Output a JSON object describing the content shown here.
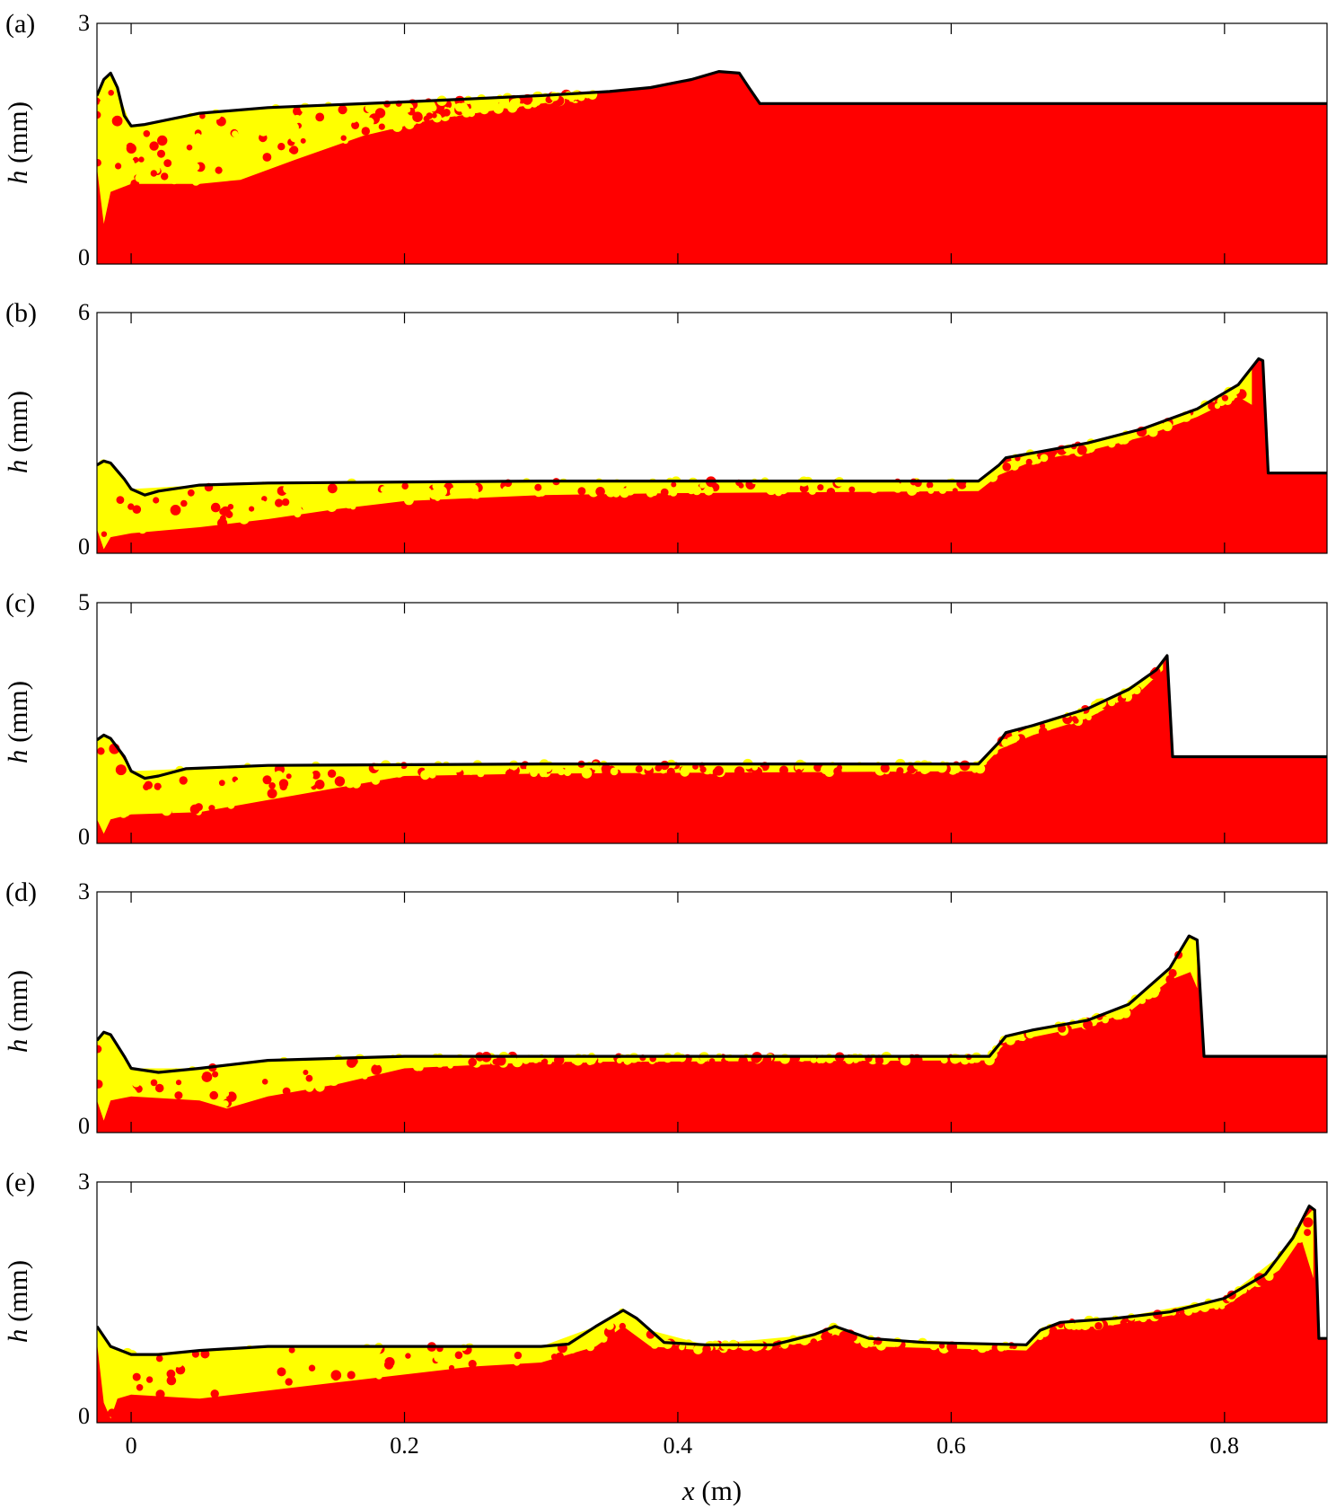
{
  "colors": {
    "fluid": "#ff0000",
    "particles": "#ffff00",
    "profile_line": "#000000",
    "background": "#ffffff"
  },
  "chart_data": {
    "type": "area",
    "shared_x": {
      "label_symbol": "x",
      "label_unit": "(m)",
      "xlim": [
        -0.025,
        0.875
      ],
      "ticks": [
        0,
        0.2,
        0.4,
        0.6,
        0.8
      ],
      "tick_labels": [
        "0",
        "0.2",
        "0.4",
        "0.6",
        "0.8"
      ]
    },
    "panels": [
      {
        "panel_label": "(a)",
        "ylabel_symbol": "h",
        "ylabel_unit": "(mm)",
        "ylim": [
          0,
          3
        ],
        "ytick_labels": [
          "0",
          "3"
        ],
        "profile": [
          [
            -0.025,
            2.1
          ],
          [
            -0.02,
            2.3
          ],
          [
            -0.015,
            2.38
          ],
          [
            -0.01,
            2.2
          ],
          [
            -0.005,
            1.85
          ],
          [
            0.0,
            1.72
          ],
          [
            0.01,
            1.74
          ],
          [
            0.05,
            1.88
          ],
          [
            0.1,
            1.95
          ],
          [
            0.2,
            2.02
          ],
          [
            0.3,
            2.1
          ],
          [
            0.35,
            2.15
          ],
          [
            0.38,
            2.2
          ],
          [
            0.41,
            2.3
          ],
          [
            0.43,
            2.4
          ],
          [
            0.445,
            2.38
          ],
          [
            0.452,
            2.2
          ],
          [
            0.46,
            2.0
          ],
          [
            0.875,
            2.0
          ]
        ],
        "particle_lower_edge": [
          [
            -0.025,
            1.2
          ],
          [
            -0.02,
            0.5
          ],
          [
            -0.015,
            0.9
          ],
          [
            0.0,
            1.0
          ],
          [
            0.05,
            1.0
          ],
          [
            0.08,
            1.05
          ],
          [
            0.12,
            1.3
          ],
          [
            0.17,
            1.6
          ],
          [
            0.22,
            1.8
          ],
          [
            0.28,
            1.95
          ],
          [
            0.34,
            2.1
          ]
        ]
      },
      {
        "panel_label": "(b)",
        "ylabel_symbol": "h",
        "ylabel_unit": "(mm)",
        "ylim": [
          0,
          6
        ],
        "ytick_labels": [
          "0",
          "6"
        ],
        "profile": [
          [
            -0.025,
            2.2
          ],
          [
            -0.02,
            2.3
          ],
          [
            -0.015,
            2.25
          ],
          [
            -0.005,
            1.85
          ],
          [
            0.0,
            1.6
          ],
          [
            0.01,
            1.45
          ],
          [
            0.02,
            1.55
          ],
          [
            0.05,
            1.7
          ],
          [
            0.1,
            1.75
          ],
          [
            0.3,
            1.8
          ],
          [
            0.62,
            1.8
          ],
          [
            0.635,
            2.2
          ],
          [
            0.64,
            2.38
          ],
          [
            0.66,
            2.5
          ],
          [
            0.7,
            2.75
          ],
          [
            0.74,
            3.1
          ],
          [
            0.78,
            3.6
          ],
          [
            0.81,
            4.2
          ],
          [
            0.825,
            4.85
          ],
          [
            0.828,
            4.8
          ],
          [
            0.832,
            2.0
          ],
          [
            0.875,
            2.0
          ]
        ],
        "particle_lower_edge": [
          [
            -0.025,
            0.6
          ],
          [
            -0.02,
            0.1
          ],
          [
            -0.015,
            0.4
          ],
          [
            0.0,
            0.5
          ],
          [
            0.05,
            0.65
          ],
          [
            0.1,
            0.85
          ],
          [
            0.15,
            1.1
          ],
          [
            0.2,
            1.3
          ],
          [
            0.3,
            1.45
          ],
          [
            0.4,
            1.5
          ],
          [
            0.62,
            1.55
          ],
          [
            0.635,
            1.95
          ],
          [
            0.66,
            2.3
          ],
          [
            0.7,
            2.55
          ],
          [
            0.74,
            2.9
          ],
          [
            0.78,
            3.4
          ],
          [
            0.81,
            3.9
          ],
          [
            0.82,
            3.7
          ]
        ]
      },
      {
        "panel_label": "(c)",
        "ylabel_symbol": "h",
        "ylabel_unit": "(mm)",
        "ylim": [
          0,
          5
        ],
        "ytick_labels": [
          "0",
          "5"
        ],
        "profile": [
          [
            -0.025,
            2.15
          ],
          [
            -0.02,
            2.25
          ],
          [
            -0.015,
            2.18
          ],
          [
            -0.005,
            1.8
          ],
          [
            0.0,
            1.5
          ],
          [
            0.01,
            1.35
          ],
          [
            0.02,
            1.4
          ],
          [
            0.04,
            1.55
          ],
          [
            0.1,
            1.62
          ],
          [
            0.3,
            1.65
          ],
          [
            0.62,
            1.65
          ],
          [
            0.635,
            2.1
          ],
          [
            0.64,
            2.3
          ],
          [
            0.66,
            2.45
          ],
          [
            0.7,
            2.8
          ],
          [
            0.73,
            3.2
          ],
          [
            0.75,
            3.6
          ],
          [
            0.758,
            3.9
          ],
          [
            0.762,
            1.8
          ],
          [
            0.875,
            1.8
          ]
        ],
        "particle_lower_edge": [
          [
            -0.025,
            0.5
          ],
          [
            -0.02,
            0.2
          ],
          [
            -0.015,
            0.5
          ],
          [
            0.0,
            0.6
          ],
          [
            0.05,
            0.65
          ],
          [
            0.1,
            0.9
          ],
          [
            0.15,
            1.15
          ],
          [
            0.2,
            1.4
          ],
          [
            0.3,
            1.45
          ],
          [
            0.62,
            1.5
          ],
          [
            0.635,
            1.95
          ],
          [
            0.66,
            2.25
          ],
          [
            0.7,
            2.6
          ],
          [
            0.74,
            3.2
          ],
          [
            0.755,
            3.6
          ]
        ]
      },
      {
        "panel_label": "(d)",
        "ylabel_symbol": "h",
        "ylabel_unit": "(mm)",
        "ylim": [
          0,
          3
        ],
        "ytick_labels": [
          "0",
          "3"
        ],
        "profile": [
          [
            -0.025,
            1.15
          ],
          [
            -0.02,
            1.25
          ],
          [
            -0.015,
            1.22
          ],
          [
            -0.005,
            0.95
          ],
          [
            0.0,
            0.8
          ],
          [
            0.02,
            0.75
          ],
          [
            0.05,
            0.8
          ],
          [
            0.1,
            0.9
          ],
          [
            0.2,
            0.95
          ],
          [
            0.4,
            0.95
          ],
          [
            0.628,
            0.95
          ],
          [
            0.64,
            1.2
          ],
          [
            0.66,
            1.28
          ],
          [
            0.7,
            1.4
          ],
          [
            0.73,
            1.6
          ],
          [
            0.76,
            2.05
          ],
          [
            0.774,
            2.45
          ],
          [
            0.78,
            2.4
          ],
          [
            0.785,
            0.95
          ],
          [
            0.875,
            0.95
          ]
        ],
        "particle_lower_edge": [
          [
            -0.025,
            0.4
          ],
          [
            -0.02,
            0.15
          ],
          [
            -0.015,
            0.4
          ],
          [
            0.0,
            0.45
          ],
          [
            0.05,
            0.4
          ],
          [
            0.07,
            0.3
          ],
          [
            0.1,
            0.45
          ],
          [
            0.15,
            0.6
          ],
          [
            0.2,
            0.8
          ],
          [
            0.3,
            0.88
          ],
          [
            0.628,
            0.9
          ],
          [
            0.64,
            1.12
          ],
          [
            0.7,
            1.33
          ],
          [
            0.73,
            1.5
          ],
          [
            0.76,
            1.9
          ],
          [
            0.775,
            2.0
          ],
          [
            0.78,
            1.8
          ]
        ]
      },
      {
        "panel_label": "(e)",
        "ylabel_symbol": "h",
        "ylabel_unit": "(mm)",
        "ylim": [
          0,
          3
        ],
        "ytick_labels": [
          "0",
          "3"
        ],
        "profile": [
          [
            -0.025,
            1.2
          ],
          [
            -0.015,
            0.95
          ],
          [
            0.0,
            0.85
          ],
          [
            0.02,
            0.85
          ],
          [
            0.05,
            0.9
          ],
          [
            0.1,
            0.95
          ],
          [
            0.2,
            0.95
          ],
          [
            0.3,
            0.95
          ],
          [
            0.32,
            0.98
          ],
          [
            0.34,
            1.2
          ],
          [
            0.36,
            1.4
          ],
          [
            0.37,
            1.3
          ],
          [
            0.39,
            1.0
          ],
          [
            0.42,
            0.97
          ],
          [
            0.47,
            0.97
          ],
          [
            0.5,
            1.1
          ],
          [
            0.515,
            1.2
          ],
          [
            0.54,
            1.05
          ],
          [
            0.58,
            1.0
          ],
          [
            0.655,
            0.97
          ],
          [
            0.665,
            1.15
          ],
          [
            0.68,
            1.25
          ],
          [
            0.72,
            1.3
          ],
          [
            0.76,
            1.38
          ],
          [
            0.8,
            1.55
          ],
          [
            0.83,
            1.85
          ],
          [
            0.85,
            2.3
          ],
          [
            0.862,
            2.7
          ],
          [
            0.866,
            2.65
          ],
          [
            0.869,
            1.05
          ],
          [
            0.875,
            1.05
          ]
        ],
        "particle_lower_edge": [
          [
            -0.025,
            1.0
          ],
          [
            -0.02,
            0.25
          ],
          [
            -0.015,
            0.05
          ],
          [
            -0.01,
            0.3
          ],
          [
            0.0,
            0.35
          ],
          [
            0.05,
            0.3
          ],
          [
            0.1,
            0.4
          ],
          [
            0.15,
            0.5
          ],
          [
            0.2,
            0.6
          ],
          [
            0.25,
            0.7
          ],
          [
            0.3,
            0.75
          ],
          [
            0.34,
            0.95
          ],
          [
            0.36,
            1.2
          ],
          [
            0.38,
            0.95
          ],
          [
            0.42,
            0.9
          ],
          [
            0.5,
            1.0
          ],
          [
            0.515,
            1.1
          ],
          [
            0.54,
            0.95
          ],
          [
            0.655,
            0.9
          ],
          [
            0.67,
            1.15
          ],
          [
            0.72,
            1.22
          ],
          [
            0.8,
            1.45
          ],
          [
            0.84,
            1.9
          ],
          [
            0.856,
            2.3
          ],
          [
            0.865,
            1.8
          ]
        ]
      }
    ]
  }
}
